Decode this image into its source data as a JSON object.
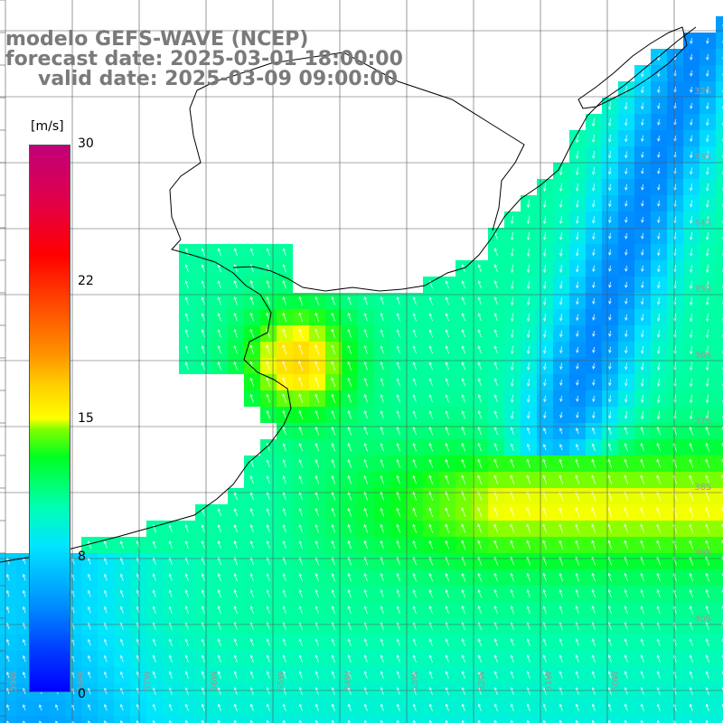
{
  "title": {
    "line1": "modelo GEFS-WAVE (NCEP)",
    "line2": "forecast date: 2025-03-01 18:00:00",
    "line3": "valid date: 2025-03-09 09:00:00"
  },
  "colorbar": {
    "unit": "[m/s]",
    "ticks": [
      "30",
      "22",
      "15",
      "8",
      "0"
    ],
    "tick_values": [
      30,
      22,
      15,
      8,
      0
    ],
    "range": [
      0,
      30
    ],
    "colors": [
      "#0000ff",
      "#0090ff",
      "#00e5ff",
      "#00ff20",
      "#ffff00",
      "#ff9000",
      "#ff0000",
      "#c0007a"
    ]
  },
  "lat_labels": [
    "32S",
    "33S",
    "34S",
    "35S",
    "36S",
    "37S",
    "38S",
    "39S",
    "40S"
  ],
  "lon_labels": [
    "59W",
    "58W",
    "57W",
    "56W",
    "55W",
    "54W",
    "53W",
    "52W",
    "51W",
    "50W"
  ],
  "colors": {
    "land": "#ffffff",
    "grid": "#555555",
    "coast": "#000000",
    "arrow": "#ffffff"
  }
}
